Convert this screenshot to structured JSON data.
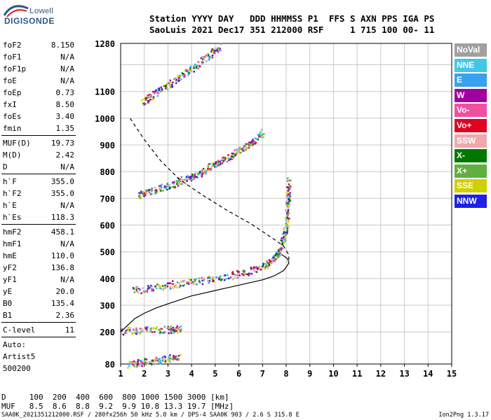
{
  "logo": {
    "line1": "Lowell",
    "line2": "DIGISONDE"
  },
  "header": {
    "line1": "Station YYYY DAY   DDD HHMMSS P1  FFS S AXN PPS IGA PS",
    "line2": "SaoLuis 2021 Dec17 351 212000 RSF     1 715 100 00- 11"
  },
  "params": [
    {
      "label": "foF2",
      "value": "8.150"
    },
    {
      "label": "foF1",
      "value": "N/A"
    },
    {
      "label": "foF1p",
      "value": "N/A"
    },
    {
      "label": "foE",
      "value": "N/A"
    },
    {
      "label": "foEp",
      "value": "0.73"
    },
    {
      "label": "fxI",
      "value": "8.50"
    },
    {
      "label": "foEs",
      "value": "3.40"
    },
    {
      "label": "fmin",
      "value": "1.35"
    },
    {
      "sep": true
    },
    {
      "label": "MUF(D)",
      "value": "19.73"
    },
    {
      "label": "M(D)",
      "value": "2.42"
    },
    {
      "label": "D",
      "value": "N/A"
    },
    {
      "sep": true
    },
    {
      "label": "h`F",
      "value": "355.0"
    },
    {
      "label": "h`F2",
      "value": "355.0"
    },
    {
      "label": "h`E",
      "value": "N/A"
    },
    {
      "label": "h`Es",
      "value": "118.3"
    },
    {
      "sep": true
    },
    {
      "label": "hmF2",
      "value": "458.1"
    },
    {
      "label": "hmF1",
      "value": "N/A"
    },
    {
      "label": "hmE",
      "value": "110.0"
    },
    {
      "label": "yF2",
      "value": "136.8"
    },
    {
      "label": "yF1",
      "value": "N/A"
    },
    {
      "label": "yE",
      "value": "20.0"
    },
    {
      "label": "B0",
      "value": "135.4"
    },
    {
      "label": "B1",
      "value": "2.36"
    },
    {
      "sep": true
    },
    {
      "label": "C-level",
      "value": "11"
    },
    {
      "sep": true
    },
    {
      "text": "Auto:"
    },
    {
      "text": "Artist5"
    },
    {
      "text": "500200"
    }
  ],
  "legend": [
    {
      "label": "NoVal",
      "color": "#a0a0a0"
    },
    {
      "label": "NNE",
      "color": "#40c8e8"
    },
    {
      "label": "E",
      "color": "#3aa0f0"
    },
    {
      "label": "W",
      "color": "#a000a0"
    },
    {
      "label": "Vo-",
      "color": "#f050a0"
    },
    {
      "label": "Vo+",
      "color": "#e00020"
    },
    {
      "label": "SSW",
      "color": "#f0a8a8"
    },
    {
      "label": "X-",
      "color": "#007800"
    },
    {
      "label": "X+",
      "color": "#60b040"
    },
    {
      "label": "SSE",
      "color": "#d0d000"
    },
    {
      "label": "NNW",
      "color": "#2020e8"
    }
  ],
  "footer": {
    "line1": "D     100  200  400  600  800 1000 1500 3000 [km]",
    "line2": "MUF   8.5  8.6  8.8  9.2  9.9 10.8 13.3 19.7 [MHz]",
    "source": "SAA0K_2021351212000.RSF / 280fx256h 50 kHz 5.0 km / DPS-4 SAA0K 903 / 2.6 S 315.8 E",
    "version": "Ion2Png 1.3.17"
  },
  "chart_data": {
    "type": "scatter",
    "xlim": [
      1,
      15
    ],
    "ylim": [
      80,
      1280
    ],
    "x_ticks": [
      "1",
      "2",
      "3",
      "4",
      "5",
      "6",
      "7",
      "8",
      "9",
      "10",
      "11",
      "12",
      "13",
      "14",
      "15"
    ],
    "y_ticks": [
      "80",
      "200",
      "300",
      "400",
      "500",
      "600",
      "700",
      "800",
      "900",
      "1000",
      "1100",
      "1280"
    ],
    "grid": true,
    "traces": [
      {
        "freq": [
          1.5,
          2.5,
          3.5,
          4.5,
          5.5,
          6.5,
          7.2,
          7.6,
          7.85,
          8.0,
          8.05,
          8.1
        ],
        "height": [
          355,
          370,
          385,
          395,
          410,
          430,
          455,
          490,
          540,
          620,
          700,
          770
        ]
      },
      {
        "freq": [
          1.7,
          2.3,
          3.0,
          3.6,
          4.2,
          4.8,
          5.4,
          6.0,
          6.5,
          7.0
        ],
        "height": [
          710,
          730,
          750,
          770,
          790,
          820,
          850,
          880,
          910,
          950
        ]
      },
      {
        "freq": [
          1.9,
          2.5,
          3.2,
          3.9,
          4.6,
          5.2
        ],
        "height": [
          1060,
          1100,
          1140,
          1180,
          1230,
          1270
        ]
      },
      {
        "freq": [
          1.3,
          2.0,
          2.8,
          3.5
        ],
        "height": [
          80,
          90,
          100,
          110
        ]
      },
      {
        "freq": [
          1.0,
          2.0,
          3.0,
          3.5
        ],
        "height": [
          205,
          210,
          210,
          215
        ]
      }
    ],
    "profile_solid": {
      "freq": [
        1.0,
        1.3,
        1.6,
        2.0,
        2.5,
        3.0,
        3.5,
        4.0,
        4.5,
        5.0,
        5.5,
        6.0,
        6.5,
        7.0,
        7.5,
        7.9,
        8.12,
        8.05,
        7.8
      ],
      "height": [
        200,
        225,
        250,
        270,
        290,
        305,
        320,
        335,
        345,
        355,
        365,
        375,
        385,
        395,
        410,
        430,
        458,
        475,
        490
      ]
    },
    "profile_dashed": {
      "freq": [
        1.4,
        2.0,
        2.7,
        3.5,
        4.5,
        5.5,
        6.5,
        7.1,
        7.6,
        7.9,
        8.1,
        8.12
      ],
      "height": [
        1000,
        920,
        840,
        770,
        710,
        655,
        605,
        570,
        540,
        520,
        490,
        470
      ]
    }
  }
}
